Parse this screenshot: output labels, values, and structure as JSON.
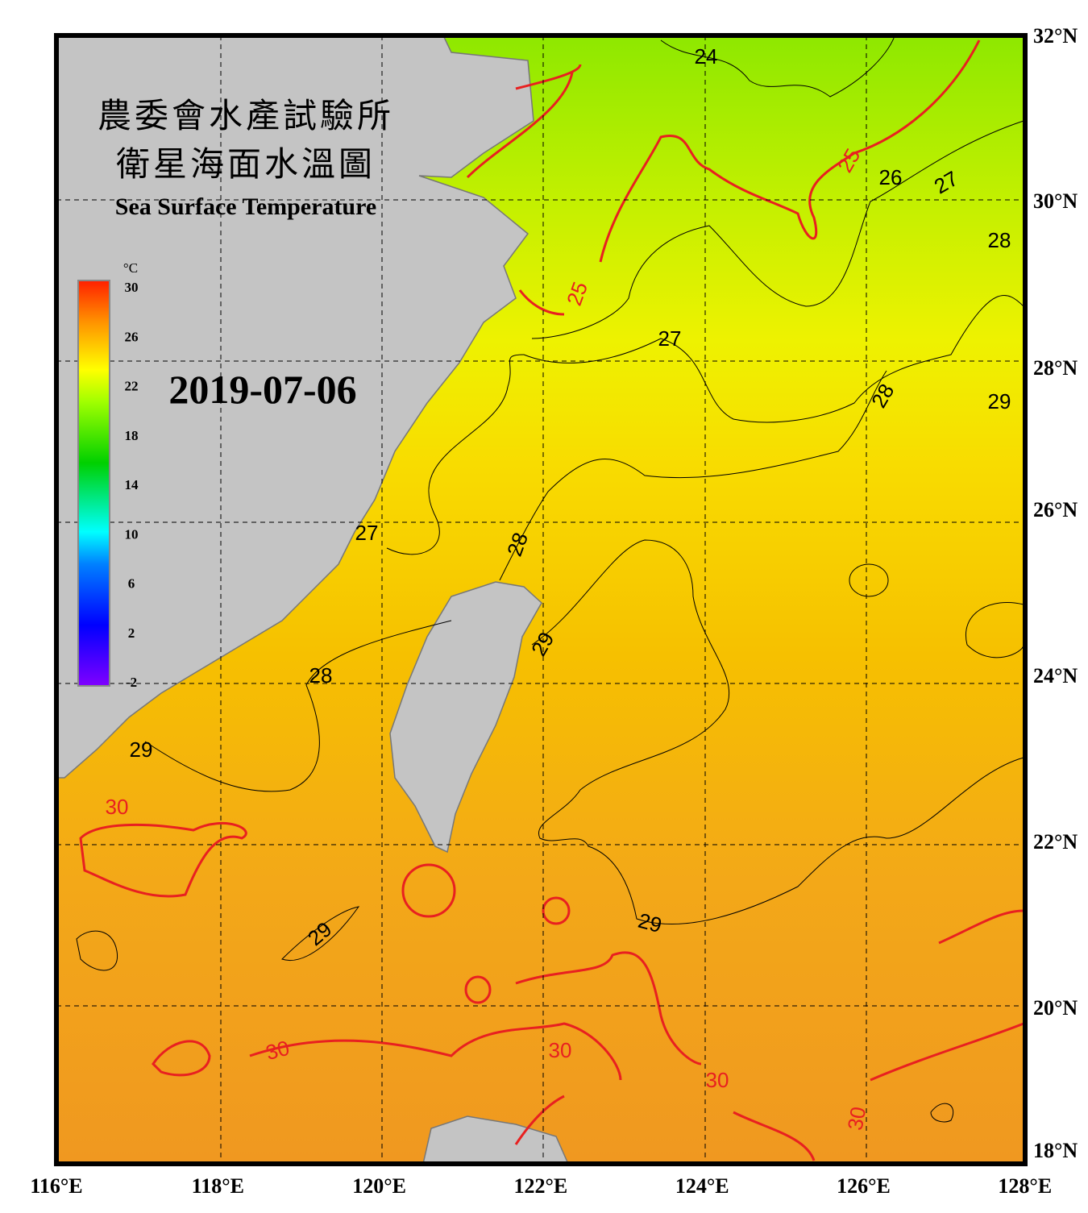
{
  "header": {
    "title_zh_1": "農委會水產試驗所",
    "title_zh_2": "衛星海面水溫圖",
    "title_en": "Sea Surface Temperature"
  },
  "date": "2019-07-06",
  "colorbar": {
    "unit": "°C",
    "ticks": [
      30,
      26,
      22,
      18,
      14,
      10,
      6,
      2,
      -2
    ]
  },
  "lat_labels": [
    "32°N",
    "30°N",
    "28°N",
    "26°N",
    "24°N",
    "22°N",
    "20°N",
    "18°N"
  ],
  "lon_labels": [
    "116°E",
    "118°E",
    "120°E",
    "122°E",
    "124°E",
    "126°E",
    "128°E"
  ],
  "contour_labels": [
    24,
    25,
    25,
    26,
    27,
    27,
    27,
    28,
    28,
    28,
    28,
    29,
    29,
    29,
    29,
    29,
    30,
    30,
    30,
    30,
    30
  ]
}
